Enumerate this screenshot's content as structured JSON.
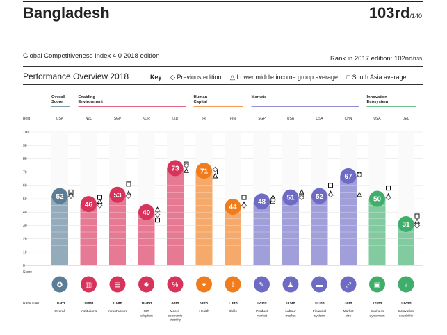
{
  "header": {
    "country": "Bangladesh",
    "rank": "103rd",
    "rank_total": "/140",
    "index_edition": "Global Competitiveness Index 4.0 2018 edition",
    "prev_rank_label": "Rank in 2017 edition: 102nd",
    "prev_rank_total": "/135"
  },
  "overview": {
    "title": "Performance Overview 2018",
    "key_label": "Key",
    "key_previous": "◇ Previous edition",
    "key_lower_middle": "△ Lower middle income group average",
    "key_south_asia": "□ South Asia average"
  },
  "chart_data": {
    "type": "bar",
    "title": "Performance Overview 2018",
    "ylabel": "Score",
    "ylim": [
      0,
      100
    ],
    "yticks": [
      0,
      10,
      20,
      30,
      40,
      50,
      60,
      70,
      80,
      90,
      100
    ],
    "y_top_label": "Best",
    "rank_row_label": "Rank /140",
    "grid": true,
    "groups": [
      {
        "label": "Overall Score",
        "color": "#5b7e96",
        "span": [
          0,
          0
        ]
      },
      {
        "label": "Enabling Environment",
        "color": "#d8335b",
        "span": [
          1,
          4
        ]
      },
      {
        "label": "Human Capital",
        "color": "#f07c1c",
        "span": [
          5,
          6
        ]
      },
      {
        "label": "Markets",
        "color": "#6e6bc4",
        "span": [
          7,
          10
        ]
      },
      {
        "label": "Innovation Ecosystem",
        "color": "#3fae6b",
        "span": [
          11,
          12
        ]
      }
    ],
    "categories": [
      "Overall",
      "Institutions",
      "Infrastructure",
      "ICT adoption",
      "Macro-economic stability",
      "Health",
      "Skills",
      "Product market",
      "Labour market",
      "Financial system",
      "Market size",
      "Business dynamism",
      "Innovation capability"
    ],
    "best": [
      "USA",
      "NZL",
      "SGP",
      "KOR",
      "(31)",
      "(4)",
      "FIN",
      "SGP",
      "USA",
      "USA",
      "CHN",
      "USA",
      "DEU"
    ],
    "values": [
      52,
      46,
      53,
      40,
      73,
      71,
      44,
      48,
      51,
      52,
      67,
      50,
      31
    ],
    "ranks": [
      "103rd",
      "108th",
      "109th",
      "102nd",
      "88th",
      "96th",
      "116th",
      "123rd",
      "115th",
      "103rd",
      "36th",
      "120th",
      "102nd"
    ],
    "previous_edition": [
      52,
      45,
      52,
      38,
      75,
      72,
      45,
      49,
      51,
      53,
      68,
      51,
      30
    ],
    "lower_middle_income_avg": [
      53,
      48,
      54,
      42,
      71,
      67,
      46,
      51,
      55,
      54,
      53,
      52,
      33
    ],
    "south_asia_avg": [
      55,
      51,
      61,
      34,
      76,
      70,
      51,
      48,
      52,
      60,
      68,
      58,
      37
    ],
    "icons": [
      "medal-icon",
      "building-icon",
      "infrastructure-icon",
      "gear-icon",
      "percent-icon",
      "heart-icon",
      "person-icon",
      "tag-icon",
      "people-icon",
      "card-icon",
      "expand-icon",
      "document-icon",
      "lightbulb-icon"
    ]
  }
}
